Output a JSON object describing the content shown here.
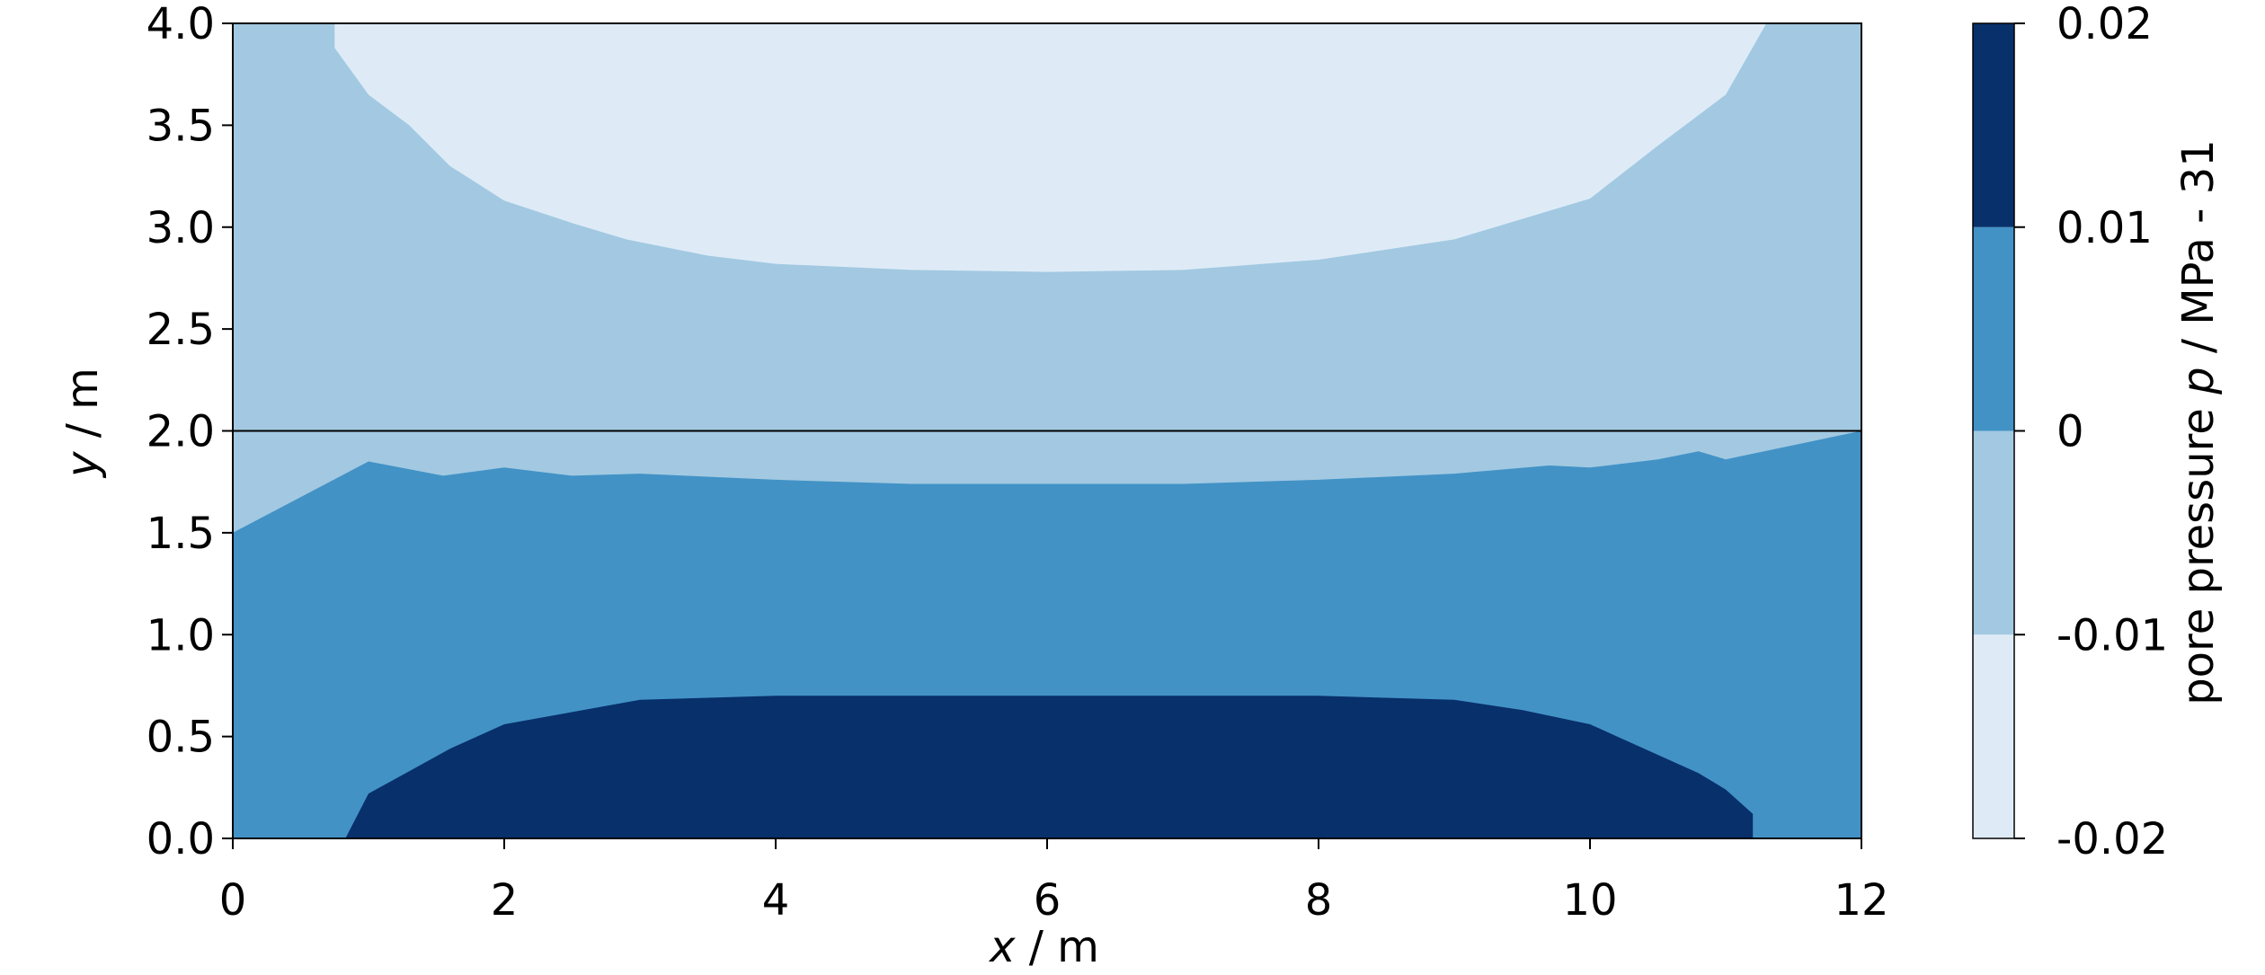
{
  "chart_data": {
    "type": "contour",
    "xlabel_var": "x",
    "xlabel_unit": " / m",
    "ylabel_var": "y",
    "ylabel_unit": " / m",
    "xlim": [
      0,
      12
    ],
    "ylim": [
      0,
      4
    ],
    "xticks": [
      0,
      2,
      4,
      6,
      8,
      10,
      12
    ],
    "yticks": [
      0.0,
      0.5,
      1.0,
      1.5,
      2.0,
      2.5,
      3.0,
      3.5,
      4.0
    ],
    "ytick_labels": [
      "0.0",
      "0.5",
      "1.0",
      "1.5",
      "2.0",
      "2.5",
      "3.0",
      "3.5",
      "4.0"
    ],
    "reference_line_y": 2.0,
    "colorbar": {
      "label_pre": "pore pressure ",
      "label_var": "p",
      "label_post": " / MPa - 31",
      "levels": [
        -0.02,
        -0.01,
        0,
        0.01,
        0.02
      ],
      "level_labels": [
        "-0.02",
        "-0.01",
        "0",
        "0.01",
        "0.02"
      ],
      "colors": [
        "#deebf7",
        "#a2c9e1",
        "#4292c6",
        "#08306b"
      ]
    },
    "background_color": "#a2c9e1",
    "regions": [
      {
        "level_range": [
          -0.02,
          -0.01
        ],
        "color": "#deebf7",
        "boundary": [
          [
            0.75,
            4.0
          ],
          [
            0.75,
            3.88
          ],
          [
            1.0,
            3.65
          ],
          [
            1.3,
            3.5
          ],
          [
            1.6,
            3.3
          ],
          [
            2.0,
            3.13
          ],
          [
            2.5,
            3.02
          ],
          [
            2.9,
            2.94
          ],
          [
            3.5,
            2.86
          ],
          [
            4.0,
            2.82
          ],
          [
            5.0,
            2.79
          ],
          [
            6.0,
            2.78
          ],
          [
            7.0,
            2.79
          ],
          [
            8.0,
            2.84
          ],
          [
            9.0,
            2.94
          ],
          [
            10.0,
            3.14
          ],
          [
            10.5,
            3.4
          ],
          [
            11.0,
            3.65
          ],
          [
            11.3,
            4.0
          ]
        ]
      },
      {
        "level_range": [
          0,
          0.01
        ],
        "color": "#4292c6",
        "boundary": [
          [
            0,
            0
          ],
          [
            0,
            1.5
          ],
          [
            1.0,
            1.85
          ],
          [
            1.55,
            1.78
          ],
          [
            2.0,
            1.82
          ],
          [
            2.5,
            1.78
          ],
          [
            3.0,
            1.79
          ],
          [
            4.0,
            1.76
          ],
          [
            5.0,
            1.74
          ],
          [
            6.0,
            1.74
          ],
          [
            7.0,
            1.74
          ],
          [
            8.0,
            1.76
          ],
          [
            9.0,
            1.79
          ],
          [
            9.7,
            1.83
          ],
          [
            10.0,
            1.82
          ],
          [
            10.5,
            1.86
          ],
          [
            10.8,
            1.9
          ],
          [
            11.0,
            1.86
          ],
          [
            12.0,
            2.0
          ],
          [
            12.0,
            0
          ]
        ]
      },
      {
        "level_range": [
          0.01,
          0.02
        ],
        "color": "#08306b",
        "boundary": [
          [
            0.83,
            0
          ],
          [
            1.0,
            0.22
          ],
          [
            1.3,
            0.33
          ],
          [
            1.6,
            0.44
          ],
          [
            2.0,
            0.56
          ],
          [
            2.5,
            0.62
          ],
          [
            3.0,
            0.68
          ],
          [
            4.0,
            0.7
          ],
          [
            5.0,
            0.7
          ],
          [
            6.0,
            0.7
          ],
          [
            7.0,
            0.7
          ],
          [
            8.0,
            0.7
          ],
          [
            9.0,
            0.68
          ],
          [
            9.5,
            0.63
          ],
          [
            10.0,
            0.56
          ],
          [
            10.2,
            0.5
          ],
          [
            10.5,
            0.41
          ],
          [
            10.8,
            0.32
          ],
          [
            11.0,
            0.24
          ],
          [
            11.2,
            0.12
          ],
          [
            11.2,
            0
          ]
        ]
      }
    ]
  }
}
